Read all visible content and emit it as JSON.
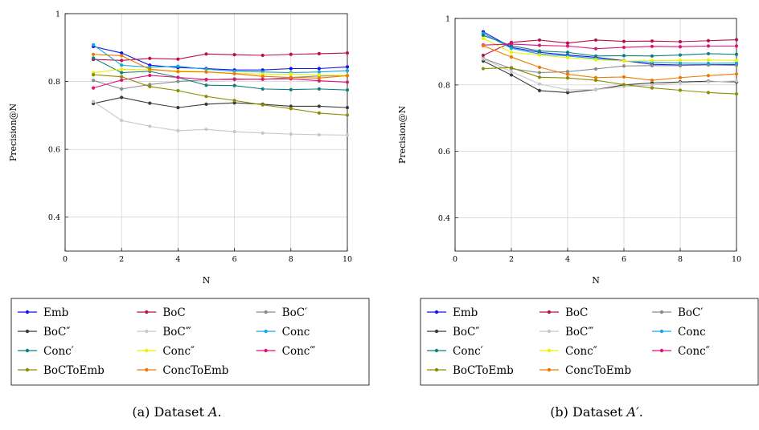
{
  "chart_data": [
    {
      "type": "line",
      "caption": "(a) Dataset A.",
      "caption_prefix": "(a) Dataset ",
      "caption_var": "A",
      "caption_suffix": ".",
      "xlabel": "N",
      "ylabel": "Precision@N",
      "xlim": [
        0,
        10
      ],
      "ylim": [
        0.3,
        1.0
      ],
      "xticks": [
        0,
        2,
        4,
        6,
        8,
        10
      ],
      "yticks": [
        0.4,
        0.6,
        0.8,
        1.0
      ],
      "ytick_labels": [
        "0.4",
        "0.6",
        "0.8",
        "1"
      ],
      "grid": true,
      "legend_placement": "below",
      "x": [
        1,
        2,
        3,
        4,
        5,
        6,
        7,
        8,
        9,
        10
      ],
      "series": [
        {
          "name": "Emb",
          "color": "#1414e6",
          "values": [
            0.903,
            0.884,
            0.848,
            0.841,
            0.838,
            0.834,
            0.834,
            0.838,
            0.838,
            0.843
          ]
        },
        {
          "name": "BoC",
          "color": "#b8124e",
          "values": [
            0.865,
            0.862,
            0.868,
            0.866,
            0.881,
            0.879,
            0.877,
            0.88,
            0.882,
            0.884
          ]
        },
        {
          "name": "BoC′",
          "color": "#8a8a8a",
          "values": [
            0.803,
            0.778,
            0.791,
            0.8,
            0.805,
            0.808,
            0.806,
            0.812,
            0.816,
            0.817
          ]
        },
        {
          "name": "BoC″",
          "color": "#3a3a3a",
          "values": [
            0.735,
            0.753,
            0.736,
            0.723,
            0.733,
            0.737,
            0.733,
            0.727,
            0.727,
            0.723
          ]
        },
        {
          "name": "BoC‴",
          "color": "#c8c8c8",
          "values": [
            0.741,
            0.685,
            0.668,
            0.655,
            0.659,
            0.652,
            0.648,
            0.645,
            0.643,
            0.642
          ]
        },
        {
          "name": "Conc",
          "color": "#12a8e0",
          "values": [
            0.908,
            0.848,
            0.842,
            0.845,
            0.836,
            0.83,
            0.828,
            0.826,
            0.828,
            0.832
          ]
        },
        {
          "name": "Conc′",
          "color": "#0e8080",
          "values": [
            0.869,
            0.826,
            0.83,
            0.812,
            0.789,
            0.788,
            0.778,
            0.776,
            0.778,
            0.775
          ]
        },
        {
          "name": "Conc″",
          "color": "#f0f000",
          "values": [
            0.826,
            0.836,
            0.834,
            0.831,
            0.829,
            0.824,
            0.822,
            0.822,
            0.819,
            0.818
          ]
        },
        {
          "name": "Conc‴",
          "color": "#e0127c",
          "values": [
            0.781,
            0.804,
            0.818,
            0.812,
            0.806,
            0.806,
            0.807,
            0.808,
            0.802,
            0.798
          ]
        },
        {
          "name": "BoCToEmb",
          "color": "#8c8c00",
          "values": [
            0.82,
            0.814,
            0.785,
            0.773,
            0.756,
            0.744,
            0.731,
            0.72,
            0.707,
            0.701
          ]
        },
        {
          "name": "ConcToEmb",
          "color": "#f07800",
          "values": [
            0.88,
            0.876,
            0.836,
            0.829,
            0.828,
            0.823,
            0.815,
            0.812,
            0.81,
            0.817
          ]
        }
      ]
    },
    {
      "type": "line",
      "caption": "(b) Dataset A′.",
      "caption_prefix": "(b) Dataset ",
      "caption_var": "A′",
      "caption_suffix": ".",
      "xlabel": "N",
      "ylabel": "Precision@N",
      "xlim": [
        0,
        10
      ],
      "ylim": [
        0.3,
        1.0
      ],
      "xticks": [
        0,
        2,
        4,
        6,
        8,
        10
      ],
      "yticks": [
        0.4,
        0.6,
        0.8,
        1.0
      ],
      "ytick_labels": [
        "0.4",
        "0.6",
        "0.8",
        "1"
      ],
      "grid": true,
      "legend_placement": "below",
      "x": [
        1,
        2,
        3,
        4,
        5,
        6,
        7,
        8,
        9,
        10
      ],
      "series": [
        {
          "name": "Emb",
          "color": "#1414e6",
          "values": [
            0.96,
            0.913,
            0.898,
            0.89,
            0.883,
            0.873,
            0.862,
            0.86,
            0.861,
            0.861
          ]
        },
        {
          "name": "BoC",
          "color": "#b8124e",
          "values": [
            0.889,
            0.928,
            0.935,
            0.926,
            0.935,
            0.931,
            0.932,
            0.93,
            0.933,
            0.936
          ]
        },
        {
          "name": "BoC′",
          "color": "#8a8a8a",
          "values": [
            0.88,
            0.849,
            0.837,
            0.84,
            0.848,
            0.857,
            0.858,
            0.858,
            0.86,
            0.859
          ]
        },
        {
          "name": "BoC″",
          "color": "#3a3a3a",
          "values": [
            0.872,
            0.83,
            0.783,
            0.777,
            0.786,
            0.8,
            0.806,
            0.809,
            0.811,
            0.809
          ]
        },
        {
          "name": "BoC‴",
          "color": "#c8c8c8",
          "values": [
            0.878,
            0.84,
            0.803,
            0.785,
            0.786,
            0.795,
            0.8,
            0.806,
            0.809,
            0.812
          ]
        },
        {
          "name": "Conc",
          "color": "#12a8e0",
          "values": [
            0.955,
            0.91,
            0.893,
            0.887,
            0.879,
            0.872,
            0.868,
            0.866,
            0.865,
            0.866
          ]
        },
        {
          "name": "Conc′",
          "color": "#0e8080",
          "values": [
            0.949,
            0.918,
            0.902,
            0.898,
            0.887,
            0.888,
            0.887,
            0.89,
            0.894,
            0.892
          ]
        },
        {
          "name": "Conc″",
          "color": "#f0f000",
          "values": [
            0.94,
            0.898,
            0.89,
            0.882,
            0.876,
            0.872,
            0.873,
            0.874,
            0.875,
            0.874
          ]
        },
        {
          "name": "Conc″",
          "color": "#e0127c",
          "values": [
            0.92,
            0.923,
            0.919,
            0.917,
            0.909,
            0.913,
            0.916,
            0.915,
            0.917,
            0.917
          ]
        },
        {
          "name": "BoCToEmb",
          "color": "#8c8c00",
          "values": [
            0.849,
            0.852,
            0.823,
            0.821,
            0.814,
            0.801,
            0.791,
            0.784,
            0.777,
            0.773
          ]
        },
        {
          "name": "ConcToEmb",
          "color": "#f07800",
          "values": [
            0.918,
            0.884,
            0.853,
            0.832,
            0.822,
            0.824,
            0.814,
            0.822,
            0.828,
            0.833
          ]
        }
      ]
    }
  ]
}
